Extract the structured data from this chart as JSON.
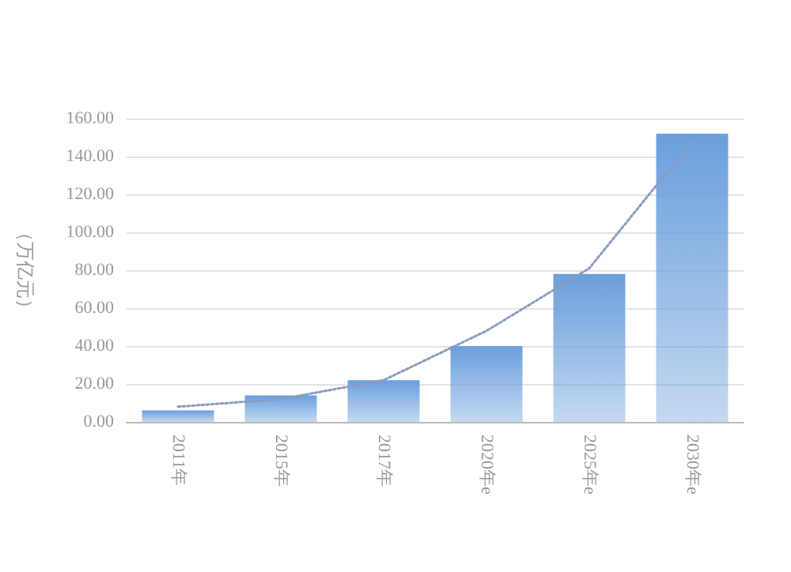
{
  "chart_data": {
    "type": "bar",
    "ylabel": "（万亿元）",
    "categories": [
      "2011年",
      "2015年",
      "2017年",
      "2020年e",
      "2025年e",
      "2030年e"
    ],
    "series": [
      {
        "color": "#6a9fdc",
        "values": [
          6,
          14,
          22,
          40,
          78,
          152
        ]
      },
      {
        "type": "line",
        "color": "#8a9cc0",
        "line_style": "dotted",
        "marker": "none",
        "values": [
          8,
          12,
          22,
          48,
          81,
          148
        ]
      }
    ],
    "ylim": [
      0,
      160
    ],
    "yticks": [
      {
        "value": 0,
        "label": "0.00"
      },
      {
        "value": 20,
        "label": "20.00"
      },
      {
        "value": 40,
        "label": "40.00"
      },
      {
        "value": 60,
        "label": "60.00"
      },
      {
        "value": 80,
        "label": "80.00"
      },
      {
        "value": 100,
        "label": "100.00"
      },
      {
        "value": 120,
        "label": "120.00"
      },
      {
        "value": 140,
        "label": "140.00"
      },
      {
        "value": 160,
        "label": "160.00"
      }
    ],
    "grid": "y"
  }
}
